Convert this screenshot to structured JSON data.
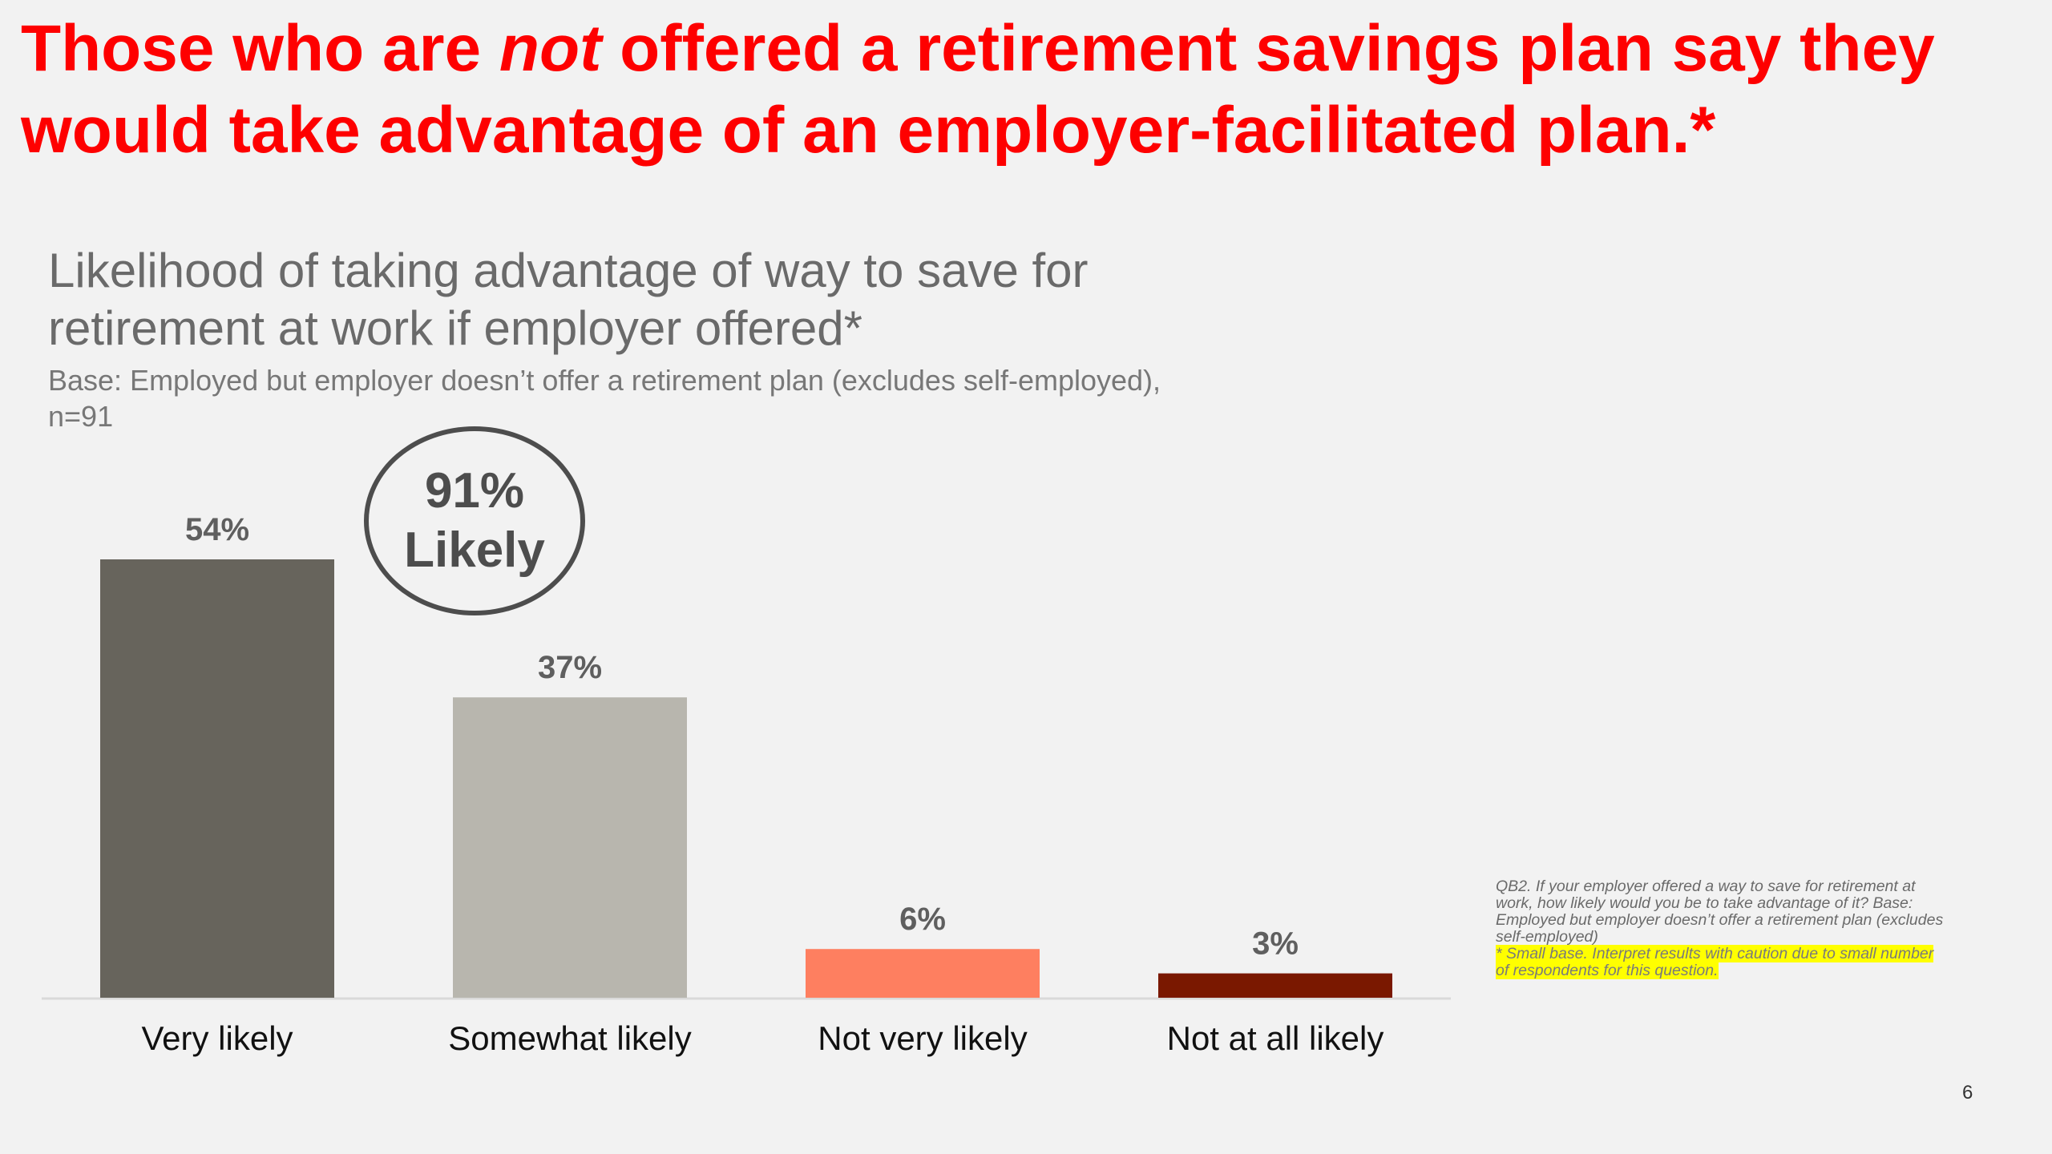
{
  "headline": {
    "part1": "Those who are ",
    "emphasis": "not",
    "part2": " offered a retirement savings plan say they would take advantage of an employer-facilitated plan.*"
  },
  "chart_subtitle": "Likelihood of taking advantage of way to save for retirement at work if employer offered*",
  "chart_base": "Base: Employed but employer doesn’t offer a retirement plan (excludes self-employed), n=91",
  "callout": {
    "value": "91%",
    "label": "Likely"
  },
  "footnote": {
    "question": "QB2. If your employer offered a way to save for retirement at work, how likely would you be to take advantage of it? Base: Employed but employer doesn’t offer a retirement plan (excludes self-employed)",
    "caution": "* Small base. Interpret results with caution due to small number of respondents for this question."
  },
  "page_number": "6",
  "colors": {
    "headline": "#fe0000",
    "very_likely": "#67645c",
    "somewhat_likely": "#b8b6ae",
    "not_very_likely": "#fe7f60",
    "not_at_all_likely": "#7a1800"
  },
  "chart_data": {
    "type": "bar",
    "title": "Likelihood of taking advantage of way to save for retirement at work if employer offered*",
    "categories": [
      "Very likely",
      "Somewhat likely",
      "Not very likely",
      "Not at all likely"
    ],
    "values": [
      54,
      37,
      6,
      3
    ],
    "value_labels": [
      "54%",
      "37%",
      "6%",
      "3%"
    ],
    "unit": "%",
    "ylim": [
      0,
      54
    ],
    "grid": false,
    "legend": "none"
  }
}
